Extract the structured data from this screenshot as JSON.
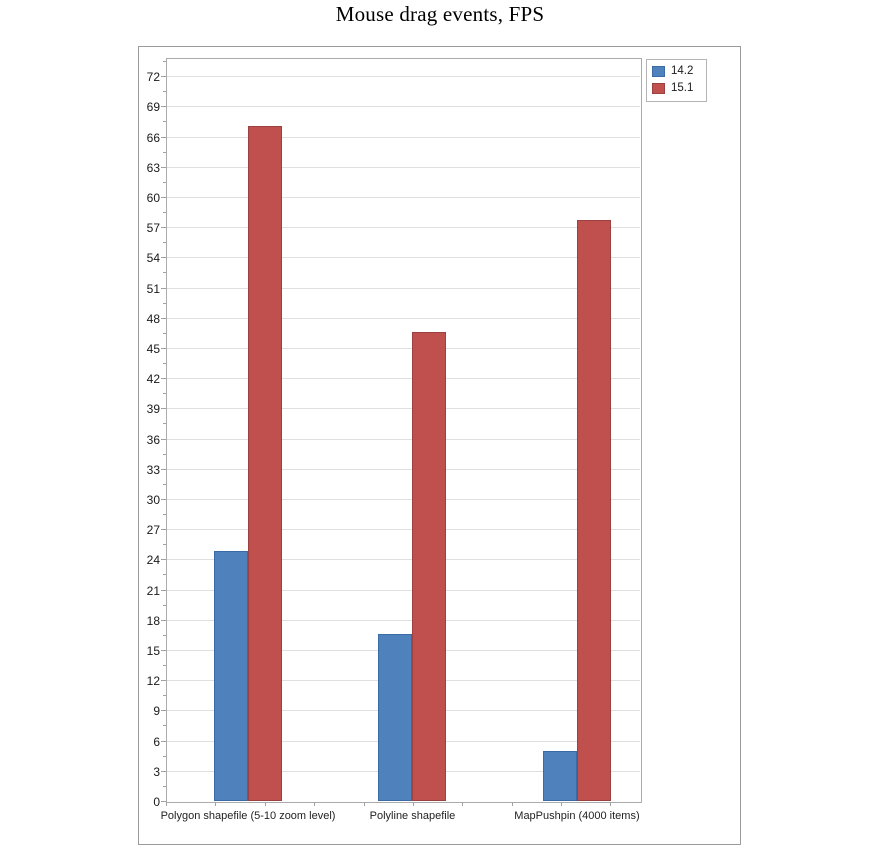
{
  "chart_data": {
    "type": "bar",
    "title": "Mouse drag events, FPS",
    "categories": [
      "Polygon shapefile (5-10 zoom level)",
      "Polyline shapefile",
      "MapPushpin (4000 items)"
    ],
    "series": [
      {
        "name": "14.2",
        "color": "#4F81BD",
        "border_color": "#3A6BA5",
        "values": [
          24.8,
          16.6,
          5.0
        ]
      },
      {
        "name": "15.1",
        "color": "#C0504D",
        "border_color": "#9B413F",
        "values": [
          67.0,
          46.6,
          57.7
        ]
      }
    ],
    "xlabel": "",
    "ylabel": "",
    "ylim": [
      0,
      73.8
    ],
    "ytick_step": 3,
    "yticks": [
      0,
      3,
      6,
      9,
      12,
      15,
      18,
      21,
      24,
      27,
      30,
      33,
      36,
      39,
      42,
      45,
      48,
      51,
      54,
      57,
      60,
      63,
      66,
      69,
      72
    ],
    "grid": "horizontal-major",
    "legend_position": "top-right",
    "legend_labels": [
      "14.2",
      "15.1"
    ],
    "colors": {
      "gridline": "#dfdfdf",
      "plot_border": "#ababab",
      "chart_border": "#9b9b9b",
      "tick": "#a0a0a0",
      "title_text": "#000000",
      "label_text": "#1f1f1f"
    }
  }
}
